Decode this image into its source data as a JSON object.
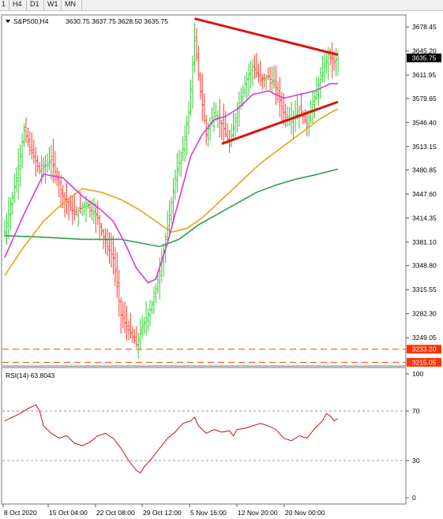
{
  "toolbar": {
    "timeframes": [
      "1",
      "H4",
      "D1",
      "W1",
      "MN"
    ]
  },
  "colors": {
    "bull_bar": "#32cd32",
    "bear_bar": "#ff3b30",
    "ma_fast": "#d63ad6",
    "ma_mid": "#e8a317",
    "ma_slow": "#2e9e4f",
    "trendline": "#dd1111",
    "rsi_line": "#cc1111",
    "level_line": "#ff4400",
    "price_box": "#000000",
    "level_box": "#ff3300"
  },
  "chart_data": [
    {
      "type": "candlestick",
      "title": "S&P500,H4",
      "ohlc_label": "3630.75 3637.75 3628.50 3635.75",
      "ylim": [
        3210,
        3695
      ],
      "y_ticks": [
        "3678.45",
        "3645.20",
        "3611.95",
        "3579.65",
        "3546.40",
        "3513.15",
        "3480.85",
        "3447.60",
        "3414.35",
        "3381.10",
        "3348.80",
        "3315.55",
        "3282.30",
        "3249.05"
      ],
      "current_price": "3635.75",
      "horizontal_levels": [
        "3233.20",
        "3215.05"
      ],
      "x_labels": [
        "8 Oct 2020",
        "15 Oct 04:00",
        "22 Oct 08:00",
        "29 Oct 12:00",
        "5 Nov 16:00",
        "12 Nov 20:00",
        "20 Nov 00:00"
      ],
      "price_path": [
        [
          0,
          3395
        ],
        [
          6,
          3470
        ],
        [
          10,
          3535
        ],
        [
          14,
          3505
        ],
        [
          18,
          3480
        ],
        [
          24,
          3495
        ],
        [
          30,
          3445
        ],
        [
          36,
          3420
        ],
        [
          42,
          3435
        ],
        [
          48,
          3415
        ],
        [
          52,
          3380
        ],
        [
          56,
          3360
        ],
        [
          60,
          3280
        ],
        [
          64,
          3260
        ],
        [
          68,
          3240
        ],
        [
          72,
          3270
        ],
        [
          76,
          3295
        ],
        [
          80,
          3340
        ],
        [
          84,
          3400
        ],
        [
          88,
          3470
        ],
        [
          92,
          3510
        ],
        [
          95,
          3560
        ],
        [
          98,
          3660
        ],
        [
          101,
          3590
        ],
        [
          104,
          3530
        ],
        [
          108,
          3560
        ],
        [
          112,
          3545
        ],
        [
          116,
          3515
        ],
        [
          120,
          3565
        ],
        [
          124,
          3600
        ],
        [
          128,
          3625
        ],
        [
          132,
          3605
        ],
        [
          136,
          3610
        ],
        [
          140,
          3595
        ],
        [
          144,
          3560
        ],
        [
          148,
          3550
        ],
        [
          152,
          3565
        ],
        [
          156,
          3545
        ],
        [
          160,
          3580
        ],
        [
          164,
          3615
        ],
        [
          167,
          3640
        ],
        [
          170,
          3630
        ],
        [
          172,
          3635.75
        ]
      ],
      "indicators": {
        "ma_fast": [
          [
            0,
            3360
          ],
          [
            10,
            3420
          ],
          [
            20,
            3475
          ],
          [
            30,
            3470
          ],
          [
            40,
            3445
          ],
          [
            50,
            3425
          ],
          [
            56,
            3410
          ],
          [
            62,
            3380
          ],
          [
            68,
            3345
          ],
          [
            74,
            3325
          ],
          [
            78,
            3330
          ],
          [
            84,
            3380
          ],
          [
            90,
            3440
          ],
          [
            96,
            3500
          ],
          [
            102,
            3530
          ],
          [
            108,
            3550
          ],
          [
            114,
            3555
          ],
          [
            120,
            3565
          ],
          [
            128,
            3585
          ],
          [
            136,
            3590
          ],
          [
            144,
            3580
          ],
          [
            152,
            3585
          ],
          [
            160,
            3590
          ],
          [
            168,
            3600
          ],
          [
            172,
            3600
          ]
        ],
        "ma_mid": [
          [
            0,
            3335
          ],
          [
            10,
            3375
          ],
          [
            20,
            3410
          ],
          [
            30,
            3435
          ],
          [
            40,
            3455
          ],
          [
            50,
            3450
          ],
          [
            60,
            3440
          ],
          [
            70,
            3425
          ],
          [
            78,
            3410
          ],
          [
            86,
            3395
          ],
          [
            94,
            3400
          ],
          [
            102,
            3415
          ],
          [
            112,
            3440
          ],
          [
            122,
            3465
          ],
          [
            132,
            3490
          ],
          [
            142,
            3510
          ],
          [
            152,
            3530
          ],
          [
            162,
            3550
          ],
          [
            168,
            3560
          ],
          [
            172,
            3565
          ]
        ],
        "ma_slow": [
          [
            0,
            3390
          ],
          [
            20,
            3388
          ],
          [
            40,
            3385
          ],
          [
            60,
            3385
          ],
          [
            70,
            3380
          ],
          [
            80,
            3375
          ],
          [
            90,
            3385
          ],
          [
            100,
            3405
          ],
          [
            110,
            3420
          ],
          [
            120,
            3435
          ],
          [
            130,
            3450
          ],
          [
            140,
            3460
          ],
          [
            150,
            3468
          ],
          [
            160,
            3474
          ],
          [
            172,
            3482
          ]
        ]
      },
      "trendlines": [
        {
          "from": [
            98,
            3690
          ],
          "to": [
            172,
            3640
          ]
        },
        {
          "from": [
            112,
            3517
          ],
          "to": [
            172,
            3575
          ]
        }
      ]
    },
    {
      "type": "line",
      "title": "RSI(14) 63.8043",
      "ylim": [
        0,
        100
      ],
      "y_ticks": [
        "100",
        "70",
        "30",
        "0"
      ],
      "levels": [
        70,
        30
      ],
      "series": [
        {
          "values": [
            [
              0,
              62
            ],
            [
              4,
              65
            ],
            [
              8,
              68
            ],
            [
              12,
              72
            ],
            [
              16,
              75
            ],
            [
              18,
              70
            ],
            [
              20,
              58
            ],
            [
              24,
              52
            ],
            [
              28,
              48
            ],
            [
              32,
              50
            ],
            [
              36,
              44
            ],
            [
              40,
              42
            ],
            [
              44,
              45
            ],
            [
              48,
              50
            ],
            [
              52,
              52
            ],
            [
              56,
              48
            ],
            [
              60,
              40
            ],
            [
              64,
              30
            ],
            [
              68,
              22
            ],
            [
              70,
              20
            ],
            [
              72,
              25
            ],
            [
              76,
              32
            ],
            [
              80,
              40
            ],
            [
              84,
              48
            ],
            [
              88,
              53
            ],
            [
              92,
              60
            ],
            [
              96,
              62
            ],
            [
              98,
              65
            ],
            [
              100,
              58
            ],
            [
              104,
              52
            ],
            [
              108,
              55
            ],
            [
              112,
              53
            ],
            [
              116,
              54
            ],
            [
              118,
              50
            ],
            [
              120,
              55
            ],
            [
              124,
              56
            ],
            [
              128,
              58
            ],
            [
              132,
              60
            ],
            [
              136,
              58
            ],
            [
              140,
              55
            ],
            [
              144,
              48
            ],
            [
              148,
              46
            ],
            [
              152,
              50
            ],
            [
              156,
              48
            ],
            [
              160,
              56
            ],
            [
              164,
              62
            ],
            [
              166,
              68
            ],
            [
              168,
              66
            ],
            [
              170,
              62
            ],
            [
              172,
              64
            ]
          ]
        }
      ]
    }
  ]
}
